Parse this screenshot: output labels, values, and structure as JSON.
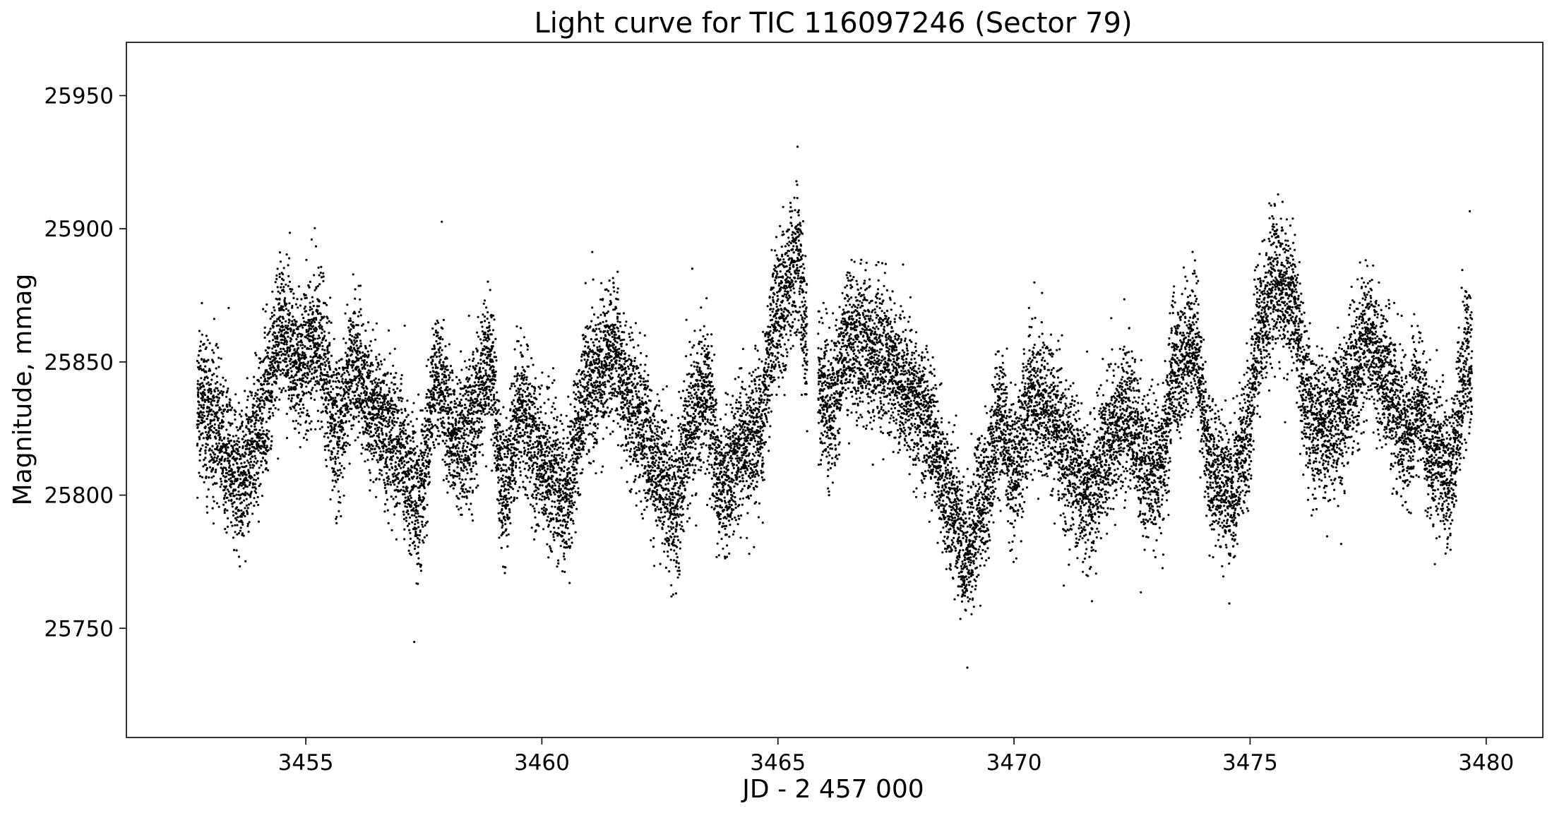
{
  "chart_data": {
    "type": "scatter",
    "title": "Light curve for TIC 116097246 (Sector 79)",
    "xlabel": "JD - 2 457 000",
    "ylabel": "Magnitude, mmag",
    "xlim": [
      3451.2,
      3481.2
    ],
    "ylim": [
      25709,
      25970
    ],
    "x_ticks": [
      3455,
      3460,
      3465,
      3470,
      3475,
      3480
    ],
    "y_ticks": [
      25750,
      25800,
      25850,
      25900,
      25950
    ],
    "marker_color": "#000000",
    "legend": "none",
    "grid": false,
    "series": [
      {
        "sampling": "2-minute cadence, x from 3452.7 to 3479.7",
        "trend_points": {
          "x": [
            3452.7,
            3453.0,
            3453.6,
            3454.0,
            3454.5,
            3454.9,
            3455.2,
            3455.7,
            3456.0,
            3456.5,
            3457.0,
            3457.4,
            3457.8,
            3458.2,
            3458.5,
            3458.9,
            3459.2,
            3459.5,
            3460.2,
            3460.5,
            3461.0,
            3461.5,
            3462.0,
            3462.5,
            3462.8,
            3463.2,
            3463.5,
            3463.8,
            3464.3,
            3464.6,
            3465.0,
            3465.4,
            3465.7,
            3466.1,
            3466.5,
            3466.9,
            3467.3,
            3467.7,
            3468.1,
            3468.6,
            3469.0,
            3469.4,
            3469.7,
            3470.0,
            3470.4,
            3470.8,
            3471.2,
            3471.6,
            3472.0,
            3472.4,
            3472.8,
            3473.1,
            3473.4,
            3473.8,
            3474.2,
            3474.6,
            3474.9,
            3475.2,
            3475.5,
            3475.9,
            3476.2,
            3476.5,
            3476.9,
            3477.2,
            3477.5,
            3477.9,
            3478.3,
            3478.6,
            3478.9,
            3479.2,
            3479.6
          ],
          "y": [
            25835,
            25828,
            25805,
            25822,
            25862,
            25848,
            25860,
            25825,
            25850,
            25830,
            25815,
            25800,
            25845,
            25818,
            25826,
            25850,
            25800,
            25830,
            25808,
            25800,
            25842,
            25852,
            25828,
            25808,
            25795,
            25830,
            25838,
            25802,
            25818,
            25825,
            25870,
            25888,
            25850,
            25832,
            25858,
            25855,
            25852,
            25838,
            25830,
            25800,
            25778,
            25800,
            25830,
            25810,
            25838,
            25832,
            25812,
            25800,
            25820,
            25830,
            25810,
            25808,
            25845,
            25858,
            25810,
            25800,
            25820,
            25860,
            25880,
            25875,
            25835,
            25825,
            25830,
            25845,
            25860,
            25840,
            25825,
            25835,
            25815,
            25808,
            25850
          ]
        }
      }
    ]
  }
}
